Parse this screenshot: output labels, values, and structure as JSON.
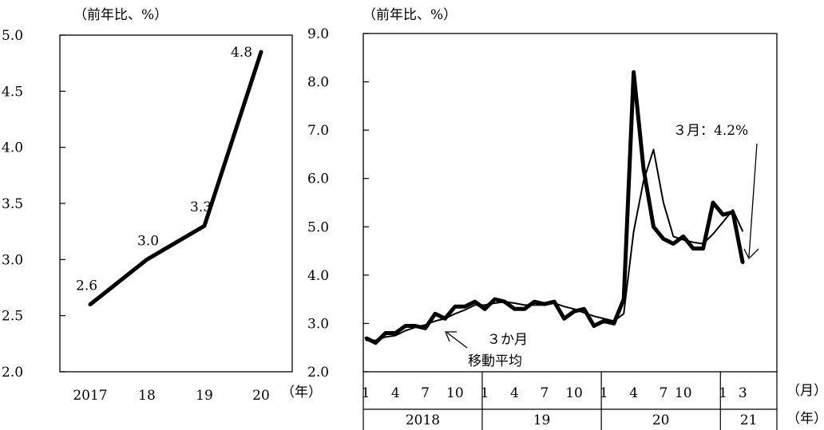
{
  "chart_data": [
    {
      "type": "line",
      "title": "",
      "ylabel": "（前年比、%）",
      "xlabel": "（年）",
      "ylim": [
        2.0,
        5.0
      ],
      "yticks": [
        "2.0",
        "2.5",
        "3.0",
        "3.5",
        "4.0",
        "4.5",
        "5.0"
      ],
      "categories": [
        "2017",
        "18",
        "19",
        "20"
      ],
      "series": [
        {
          "values": [
            2.6,
            3.0,
            3.3,
            4.85
          ]
        }
      ],
      "data_labels": [
        "2.6",
        "3.0",
        "3.3",
        "4.8"
      ]
    },
    {
      "type": "line",
      "title": "",
      "ylabel": "（前年比、%）",
      "ylim": [
        2.0,
        9.0
      ],
      "yticks": [
        "2.0",
        "3.0",
        "4.0",
        "5.0",
        "6.0",
        "7.0",
        "8.0",
        "9.0"
      ],
      "month_unit": "（月）",
      "year_unit": "（年）",
      "month_ticks": [
        {
          "i": 0,
          "label": "1"
        },
        {
          "i": 3,
          "label": "4"
        },
        {
          "i": 6,
          "label": "7"
        },
        {
          "i": 9,
          "label": "10"
        },
        {
          "i": 12,
          "label": "1"
        },
        {
          "i": 15,
          "label": "4"
        },
        {
          "i": 18,
          "label": "7"
        },
        {
          "i": 21,
          "label": "10"
        },
        {
          "i": 24,
          "label": "1"
        },
        {
          "i": 27,
          "label": "4"
        },
        {
          "i": 30,
          "label": "7"
        },
        {
          "i": 32,
          "label": "10"
        },
        {
          "i": 36,
          "label": "1"
        },
        {
          "i": 38,
          "label": "3"
        }
      ],
      "year_groups": [
        {
          "label": "2018",
          "start": 0,
          "count": 12
        },
        {
          "label": "19",
          "start": 12,
          "count": 12
        },
        {
          "label": "20",
          "start": 24,
          "count": 12
        },
        {
          "label": "21",
          "start": 36,
          "count": 3
        }
      ],
      "series": [
        {
          "style": "monthly",
          "values": [
            2.7,
            2.6,
            2.8,
            2.8,
            2.95,
            2.95,
            2.9,
            3.2,
            3.1,
            3.35,
            3.35,
            3.45,
            3.3,
            3.5,
            3.45,
            3.3,
            3.3,
            3.45,
            3.4,
            3.45,
            3.1,
            3.25,
            3.3,
            2.95,
            3.05,
            3.0,
            3.5,
            8.2,
            6.2,
            5.0,
            4.75,
            4.65,
            4.8,
            4.55,
            4.55,
            5.5,
            5.25,
            5.3,
            4.25
          ]
        },
        {
          "name": "3か月移動平均",
          "style": "moving-average",
          "values": [
            2.65,
            2.65,
            2.72,
            2.75,
            2.85,
            2.92,
            2.97,
            3.05,
            3.1,
            3.2,
            3.28,
            3.38,
            3.38,
            3.42,
            3.45,
            3.42,
            3.38,
            3.38,
            3.38,
            3.42,
            3.35,
            3.3,
            3.22,
            3.15,
            3.1,
            3.05,
            3.2,
            4.9,
            5.95,
            6.6,
            5.5,
            4.8,
            4.73,
            4.68,
            4.65,
            4.85,
            5.1,
            5.35,
            4.9
          ]
        }
      ],
      "annotations": [
        {
          "text": "３月：4.2%"
        },
        {
          "text": "３か月"
        },
        {
          "text": "移動平均"
        }
      ]
    }
  ]
}
